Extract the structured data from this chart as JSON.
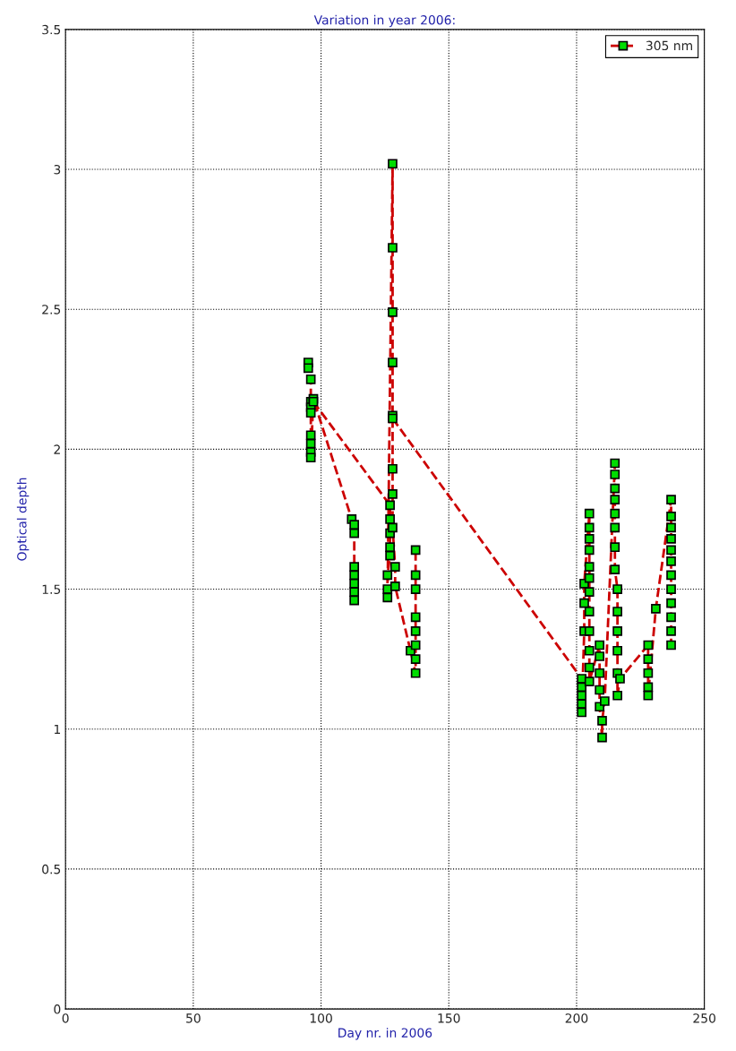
{
  "chart_data": {
    "type": "line",
    "title": "Variation in year 2006:",
    "xlabel": "Day nr. in 2006",
    "ylabel": "Optical depth",
    "xlim": [
      0,
      250
    ],
    "xticks": [
      0,
      50,
      100,
      150,
      200,
      250
    ],
    "ylim": [
      0,
      3.5
    ],
    "yticks": [
      0,
      0.5,
      1,
      1.5,
      2,
      2.5,
      3,
      3.5
    ],
    "grid": true,
    "legend": "top right",
    "marker": "square",
    "line_style": "dashed",
    "series": [
      {
        "name": "305 nm",
        "color": "#cc0000",
        "x": [
          95,
          95,
          96,
          96,
          96,
          96,
          96,
          96,
          96,
          96,
          97,
          112,
          113,
          113,
          113,
          113,
          113,
          113,
          113,
          null,
          97,
          127,
          127,
          127,
          127,
          127,
          126,
          126,
          126,
          128,
          128,
          128,
          128,
          128,
          128,
          128,
          128,
          129,
          129,
          135,
          137,
          137,
          137,
          137,
          137,
          137,
          137,
          137,
          null,
          128,
          202,
          202,
          202,
          202,
          202,
          203,
          203,
          203,
          205,
          205,
          205,
          205,
          205,
          205,
          205,
          205,
          205,
          205,
          205,
          205,
          209,
          209,
          209,
          209,
          209,
          210,
          210,
          211,
          215,
          215,
          215,
          215,
          215,
          215,
          215,
          215,
          216,
          216,
          216,
          216,
          216,
          216,
          217,
          228,
          228,
          228,
          228,
          228,
          231,
          237,
          237,
          237,
          237,
          237,
          237,
          237,
          237,
          237,
          237,
          237,
          237
        ],
        "values": [
          2.31,
          2.29,
          2.25,
          2.17,
          2.15,
          2.13,
          2.05,
          2.02,
          1.99,
          1.97,
          2.18,
          1.75,
          1.73,
          1.7,
          1.58,
          1.55,
          1.52,
          1.49,
          1.46,
          null,
          2.17,
          1.8,
          1.75,
          1.7,
          1.65,
          1.62,
          1.55,
          1.5,
          1.47,
          3.02,
          2.72,
          2.49,
          2.31,
          2.12,
          1.93,
          1.84,
          1.72,
          1.58,
          1.51,
          1.28,
          1.2,
          1.25,
          1.3,
          1.35,
          1.4,
          1.5,
          1.55,
          1.64,
          null,
          2.11,
          1.18,
          1.15,
          1.12,
          1.09,
          1.06,
          1.35,
          1.45,
          1.52,
          1.77,
          1.72,
          1.68,
          1.64,
          1.58,
          1.54,
          1.49,
          1.42,
          1.35,
          1.28,
          1.22,
          1.17,
          1.3,
          1.26,
          1.2,
          1.14,
          1.08,
          0.97,
          1.03,
          1.1,
          1.95,
          1.91,
          1.86,
          1.82,
          1.77,
          1.72,
          1.65,
          1.57,
          1.5,
          1.42,
          1.35,
          1.28,
          1.2,
          1.12,
          1.18,
          1.3,
          1.25,
          1.2,
          1.15,
          1.12,
          1.43,
          1.82,
          1.76,
          1.72,
          1.68,
          1.64,
          1.6,
          1.55,
          1.5,
          1.45,
          1.4,
          1.35,
          1.3
        ]
      }
    ]
  }
}
